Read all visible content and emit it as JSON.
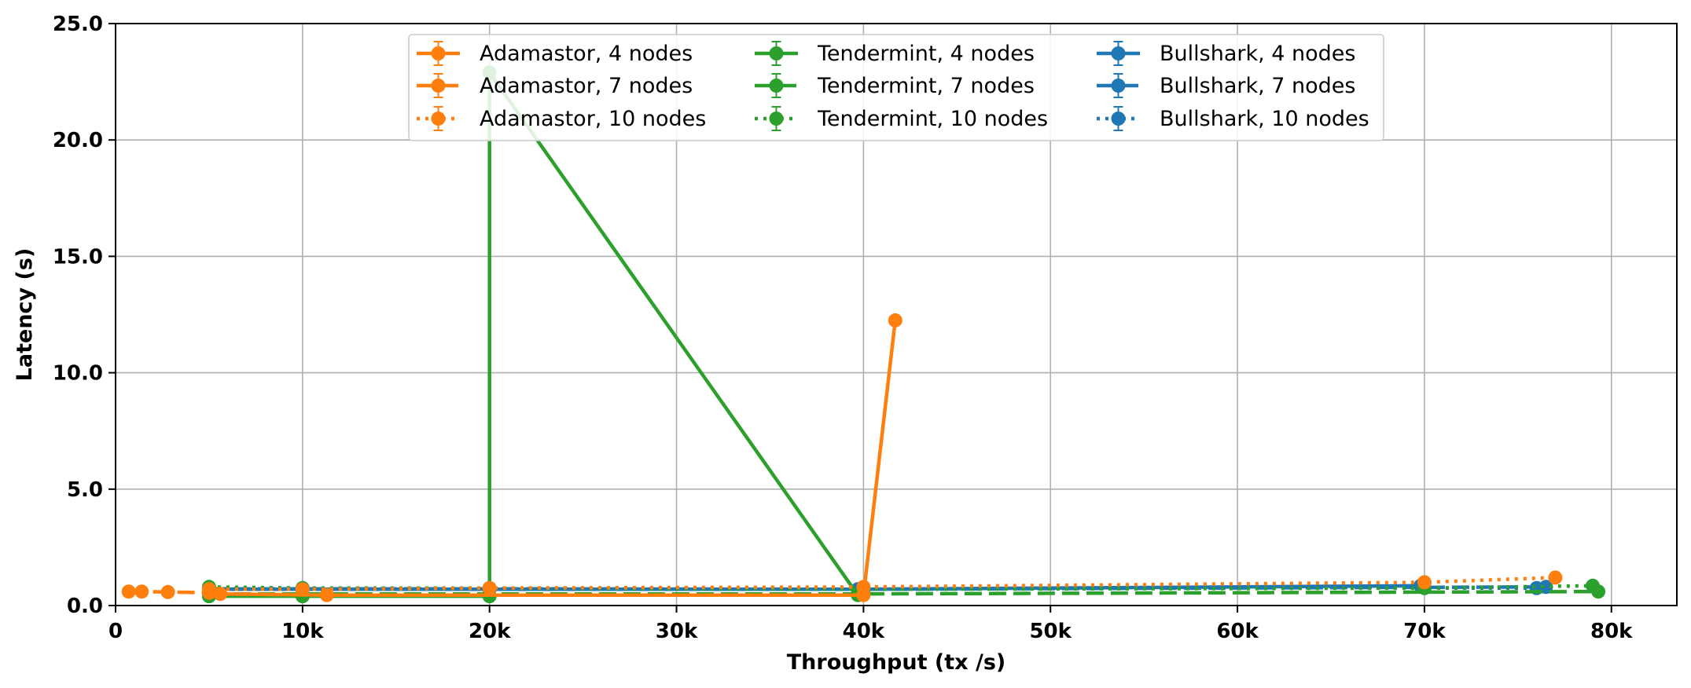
{
  "chart_data": {
    "type": "line",
    "xlabel": "Throughput (tx /s)",
    "ylabel": "Latency (s)",
    "xlim": [
      0,
      83500
    ],
    "ylim": [
      0,
      25
    ],
    "xticks": [
      0,
      10000,
      20000,
      30000,
      40000,
      50000,
      60000,
      70000,
      80000
    ],
    "xtick_labels": [
      "0",
      "10k",
      "20k",
      "30k",
      "40k",
      "50k",
      "60k",
      "70k",
      "80k"
    ],
    "yticks": [
      0,
      5,
      10,
      15,
      20,
      25
    ],
    "ytick_labels": [
      "0.0",
      "5.0",
      "10.0",
      "15.0",
      "20.0",
      "25.0"
    ],
    "grid": true,
    "legend_position": "top-center",
    "series": [
      {
        "name": "Adamastor, 4 nodes",
        "color": "#ff7f0e",
        "style": "solid",
        "x": [
          5600,
          11300,
          40000,
          41700
        ],
        "y": [
          0.5,
          0.45,
          0.45,
          12.25
        ]
      },
      {
        "name": "Adamastor, 7 nodes",
        "color": "#ff7f0e",
        "style": "dashed",
        "x": [
          700,
          1400,
          2800,
          5000
        ],
        "y": [
          0.6,
          0.6,
          0.58,
          0.55
        ]
      },
      {
        "name": "Adamastor, 10 nodes",
        "color": "#ff7f0e",
        "style": "dotted",
        "x": [
          5000,
          10000,
          20000,
          40000,
          70000,
          77000
        ],
        "y": [
          0.7,
          0.7,
          0.75,
          0.8,
          1.0,
          1.2
        ]
      },
      {
        "name": "Tendermint, 4 nodes",
        "color": "#2ca02c",
        "style": "solid",
        "x": [
          5000,
          10000,
          20000,
          20000,
          39700
        ],
        "y": [
          0.4,
          0.4,
          0.4,
          22.9,
          0.45
        ]
      },
      {
        "name": "Tendermint, 7 nodes",
        "color": "#2ca02c",
        "style": "dashed",
        "x": [
          5000,
          40000,
          79300
        ],
        "y": [
          0.5,
          0.5,
          0.6
        ]
      },
      {
        "name": "Tendermint, 10 nodes",
        "color": "#2ca02c",
        "style": "dotted",
        "x": [
          5000,
          10000,
          20000,
          40000,
          70000,
          79000
        ],
        "y": [
          0.8,
          0.75,
          0.75,
          0.7,
          0.75,
          0.85
        ]
      },
      {
        "name": "Bullshark, 4 nodes",
        "color": "#1f77b4",
        "style": "solid",
        "x": [
          5000,
          10000,
          20000,
          39700,
          69800
        ],
        "y": [
          0.7,
          0.7,
          0.7,
          0.7,
          0.85
        ]
      },
      {
        "name": "Bullshark, 7 nodes",
        "color": "#1f77b4",
        "style": "dashed",
        "x": [
          5000,
          10000,
          20000,
          40000,
          76500
        ],
        "y": [
          0.72,
          0.72,
          0.72,
          0.7,
          0.8
        ]
      },
      {
        "name": "Bullshark, 10 nodes",
        "color": "#1f77b4",
        "style": "dotted",
        "x": [
          5000,
          10000,
          20000,
          40000,
          76000
        ],
        "y": [
          0.75,
          0.75,
          0.75,
          0.75,
          0.75
        ]
      }
    ]
  }
}
